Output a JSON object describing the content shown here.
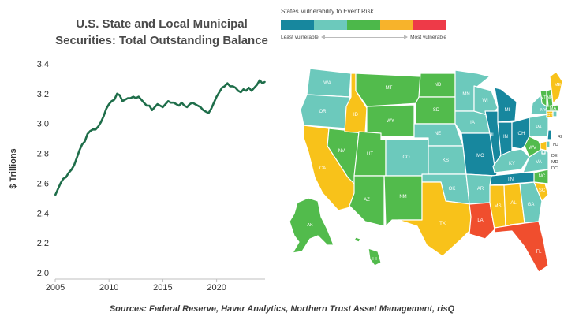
{
  "chart_data": {
    "type": "line",
    "title_lines": [
      "U.S. State and Local Municipal",
      "Securities: Total Outstanding Balance"
    ],
    "ylabel": "$ Trillions",
    "xlabel": "",
    "xlim": [
      2005,
      2024.5
    ],
    "ylim": [
      2.0,
      3.4
    ],
    "xticks": [
      2005,
      2010,
      2015,
      2020
    ],
    "yticks": [
      "2.0",
      "2.2",
      "2.4",
      "2.6",
      "2.8",
      "3.0",
      "3.2",
      "3.4"
    ],
    "grid": false,
    "series": [
      {
        "name": "Total Outstanding Balance",
        "color": "#1f6e4a",
        "x": [
          2005.0,
          2005.25,
          2005.5,
          2005.75,
          2006.0,
          2006.25,
          2006.5,
          2006.75,
          2007.0,
          2007.25,
          2007.5,
          2007.75,
          2008.0,
          2008.25,
          2008.5,
          2008.75,
          2009.0,
          2009.25,
          2009.5,
          2009.75,
          2010.0,
          2010.25,
          2010.5,
          2010.75,
          2011.0,
          2011.25,
          2011.5,
          2011.75,
          2012.0,
          2012.25,
          2012.5,
          2012.75,
          2013.0,
          2013.25,
          2013.5,
          2013.75,
          2014.0,
          2014.25,
          2014.5,
          2014.75,
          2015.0,
          2015.25,
          2015.5,
          2015.75,
          2016.0,
          2016.25,
          2016.5,
          2016.75,
          2017.0,
          2017.25,
          2017.5,
          2017.75,
          2018.0,
          2018.25,
          2018.5,
          2018.75,
          2019.0,
          2019.25,
          2019.5,
          2019.75,
          2020.0,
          2020.25,
          2020.5,
          2020.75,
          2021.0,
          2021.25,
          2021.5,
          2021.75,
          2022.0,
          2022.25,
          2022.5,
          2022.75,
          2023.0,
          2023.25,
          2023.5,
          2023.75,
          2024.0,
          2024.25,
          2024.5
        ],
        "y": [
          2.52,
          2.56,
          2.6,
          2.63,
          2.64,
          2.67,
          2.69,
          2.72,
          2.77,
          2.82,
          2.86,
          2.88,
          2.93,
          2.95,
          2.96,
          2.96,
          2.98,
          3.01,
          3.05,
          3.1,
          3.13,
          3.15,
          3.16,
          3.2,
          3.19,
          3.15,
          3.16,
          3.17,
          3.17,
          3.18,
          3.17,
          3.18,
          3.16,
          3.14,
          3.12,
          3.12,
          3.09,
          3.11,
          3.13,
          3.12,
          3.11,
          3.13,
          3.15,
          3.14,
          3.14,
          3.13,
          3.12,
          3.14,
          3.12,
          3.11,
          3.13,
          3.14,
          3.13,
          3.12,
          3.11,
          3.09,
          3.08,
          3.07,
          3.1,
          3.14,
          3.18,
          3.21,
          3.24,
          3.25,
          3.27,
          3.25,
          3.25,
          3.24,
          3.22,
          3.21,
          3.23,
          3.22,
          3.24,
          3.22,
          3.24,
          3.26,
          3.29,
          3.27,
          3.28
        ]
      }
    ]
  },
  "map": {
    "legend_title": "States Vulnerability to Event Risk",
    "least_label": "Least vulnerable",
    "most_label": "Most vulnerable",
    "colors": [
      "#17879e",
      "#6cc9bc",
      "#4cb84a",
      "#f7b32b",
      "#ee3a48"
    ],
    "fill_colors": [
      "#17879e",
      "#6cc9bc",
      "#52bb4c",
      "#f8c21a",
      "#f04e2e"
    ],
    "states": [
      {
        "abbr": "WA",
        "level": 1
      },
      {
        "abbr": "OR",
        "level": 1
      },
      {
        "abbr": "CA",
        "level": 3
      },
      {
        "abbr": "NV",
        "level": 2
      },
      {
        "abbr": "ID",
        "level": 3
      },
      {
        "abbr": "MT",
        "level": 2
      },
      {
        "abbr": "WY",
        "level": 2
      },
      {
        "abbr": "UT",
        "level": 2
      },
      {
        "abbr": "AZ",
        "level": 2
      },
      {
        "abbr": "CO",
        "level": 1
      },
      {
        "abbr": "NM",
        "level": 2
      },
      {
        "abbr": "ND",
        "level": 2
      },
      {
        "abbr": "SD",
        "level": 2
      },
      {
        "abbr": "NE",
        "level": 1
      },
      {
        "abbr": "KS",
        "level": 1
      },
      {
        "abbr": "OK",
        "level": 1
      },
      {
        "abbr": "TX",
        "level": 3
      },
      {
        "abbr": "MN",
        "level": 1
      },
      {
        "abbr": "IA",
        "level": 1
      },
      {
        "abbr": "MO",
        "level": 0
      },
      {
        "abbr": "AR",
        "level": 1
      },
      {
        "abbr": "LA",
        "level": 4
      },
      {
        "abbr": "WI",
        "level": 1
      },
      {
        "abbr": "IL",
        "level": 0
      },
      {
        "abbr": "MI",
        "level": 0
      },
      {
        "abbr": "IN",
        "level": 0
      },
      {
        "abbr": "OH",
        "level": 0
      },
      {
        "abbr": "KY",
        "level": 1
      },
      {
        "abbr": "TN",
        "level": 0
      },
      {
        "abbr": "MS",
        "level": 3
      },
      {
        "abbr": "AL",
        "level": 3
      },
      {
        "abbr": "GA",
        "level": 1
      },
      {
        "abbr": "FL",
        "level": 4
      },
      {
        "abbr": "SC",
        "level": 3
      },
      {
        "abbr": "NC",
        "level": 2
      },
      {
        "abbr": "VA",
        "level": 1
      },
      {
        "abbr": "WV",
        "level": 2
      },
      {
        "abbr": "PA",
        "level": 1
      },
      {
        "abbr": "NY",
        "level": 1
      },
      {
        "abbr": "VT",
        "level": 2
      },
      {
        "abbr": "NH",
        "level": 2
      },
      {
        "abbr": "ME",
        "level": 3
      },
      {
        "abbr": "MA",
        "level": 2
      },
      {
        "abbr": "CT",
        "level": 3
      },
      {
        "abbr": "RI",
        "level": 1
      },
      {
        "abbr": "NJ",
        "level": 0
      },
      {
        "abbr": "DE",
        "level": 1
      },
      {
        "abbr": "MD",
        "level": 3
      },
      {
        "abbr": "DC",
        "level": 1
      },
      {
        "abbr": "AK",
        "level": 2
      },
      {
        "abbr": "HI",
        "level": 2
      }
    ]
  },
  "sources": "Sources: Federal Reserve, Haver Analytics, Northern Trust Asset Management, risQ"
}
